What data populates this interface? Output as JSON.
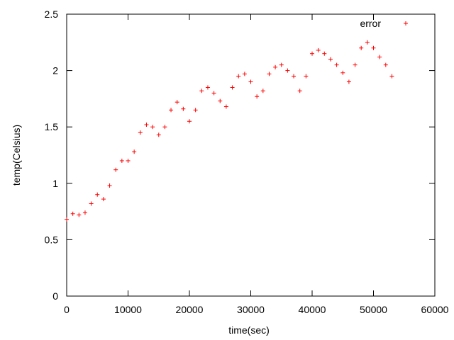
{
  "chart_data": {
    "type": "scatter",
    "xlabel": "time(sec)",
    "ylabel": "temp(Celsius)",
    "xlim": [
      0,
      60000
    ],
    "ylim": [
      0,
      2.5
    ],
    "xticks": [
      0,
      10000,
      20000,
      30000,
      40000,
      50000,
      60000
    ],
    "yticks": [
      0,
      0.5,
      1,
      1.5,
      2,
      2.5
    ],
    "xtick_labels": [
      "0",
      "10000",
      "20000",
      "30000",
      "40000",
      "50000",
      "60000"
    ],
    "ytick_labels": [
      "0",
      "0.5",
      "1",
      "1.5",
      "2",
      "2.5"
    ],
    "grid": false,
    "legend_position": "top-right",
    "marker": "plus",
    "series": [
      {
        "name": "error",
        "color": "#ff0000",
        "x": [
          0,
          1000,
          2000,
          3000,
          4000,
          5000,
          6000,
          7000,
          8000,
          9000,
          10000,
          11000,
          12000,
          13000,
          14000,
          15000,
          16000,
          17000,
          18000,
          19000,
          20000,
          21000,
          22000,
          23000,
          24000,
          25000,
          26000,
          27000,
          28000,
          29000,
          30000,
          31000,
          32000,
          33000,
          34000,
          35000,
          36000,
          37000,
          38000,
          39000,
          40000,
          41000,
          42000,
          43000,
          44000,
          45000,
          46000,
          47000,
          48000,
          49000,
          50000,
          51000,
          52000,
          53000
        ],
        "y": [
          0.68,
          0.73,
          0.72,
          0.74,
          0.82,
          0.9,
          0.86,
          0.98,
          1.12,
          1.2,
          1.2,
          1.28,
          1.45,
          1.52,
          1.5,
          1.43,
          1.5,
          1.65,
          1.72,
          1.66,
          1.55,
          1.65,
          1.82,
          1.85,
          1.8,
          1.73,
          1.68,
          1.85,
          1.95,
          1.97,
          1.9,
          1.77,
          1.82,
          1.97,
          2.03,
          2.05,
          2.0,
          1.95,
          1.82,
          1.95,
          2.15,
          2.18,
          2.15,
          2.1,
          2.05,
          1.98,
          1.9,
          2.05,
          2.2,
          2.25,
          2.2,
          2.12,
          2.05,
          1.95
        ]
      }
    ]
  }
}
